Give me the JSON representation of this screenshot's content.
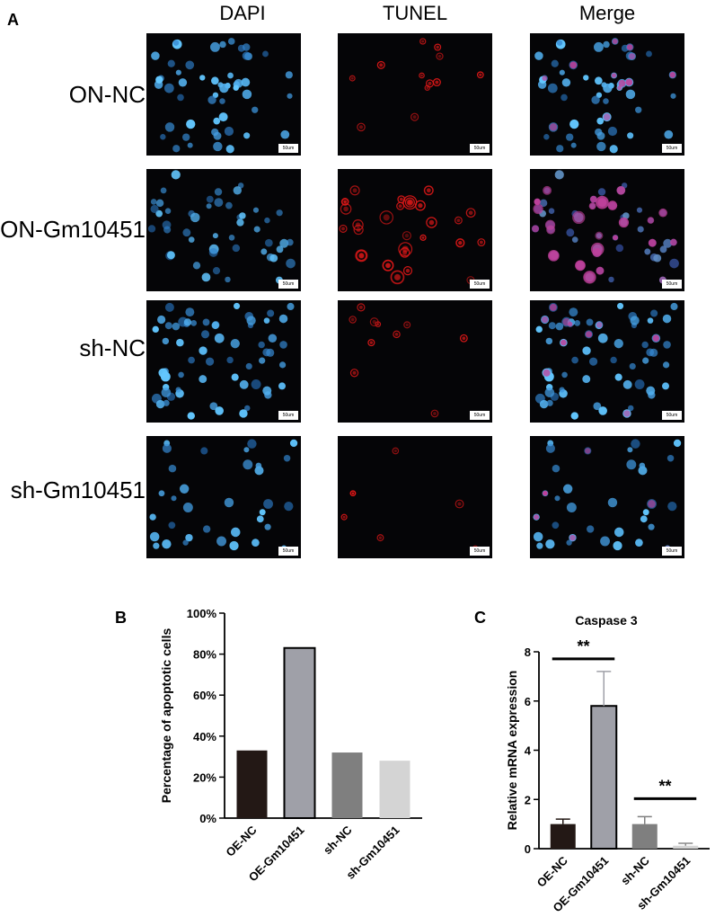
{
  "panel_a": {
    "letter": "A",
    "columns": [
      "DAPI",
      "TUNEL",
      "Merge"
    ],
    "rows": [
      "ON-NC",
      "ON-Gm10451",
      "sh-NC",
      "sh-Gm10451"
    ],
    "scale_label": "50um"
  },
  "colors": {
    "dapi": "#3a8fd8",
    "tunel": "#e01818",
    "merge_pink": "#c0409a",
    "background": "#050507"
  },
  "chart_data": [
    {
      "panel": "B",
      "type": "bar",
      "categories": [
        "OE-NC",
        "OE-Gm10451",
        "sh-NC",
        "sh-Gm10451"
      ],
      "values": [
        33,
        83,
        32,
        28
      ],
      "ylabel": "Percentage of apoptotic cells",
      "ylim": [
        0,
        100
      ],
      "yticks": [
        "0%",
        "20%",
        "40%",
        "60%",
        "80%",
        "100%"
      ],
      "colors": [
        "#231815",
        "#9fa0a8",
        "#7f7f7f",
        "#d4d4d4"
      ]
    },
    {
      "panel": "C",
      "type": "bar",
      "title": "Caspase 3",
      "categories": [
        "OE-NC",
        "OE-Gm10451",
        "sh-NC",
        "sh-Gm10451"
      ],
      "values": [
        1.0,
        5.8,
        1.0,
        0.12
      ],
      "errors": [
        0.2,
        1.4,
        0.3,
        0.1
      ],
      "ylabel": "Relative mRNA expression",
      "ylim": [
        0,
        8
      ],
      "yticks": [
        "0",
        "2",
        "4",
        "6",
        "8"
      ],
      "colors": [
        "#231815",
        "#9fa0a8",
        "#7f7f7f",
        "#d4d4d4"
      ],
      "significance": [
        {
          "from": 0,
          "to": 1,
          "label": "**"
        },
        {
          "from": 2,
          "to": 3,
          "label": "**"
        }
      ]
    }
  ]
}
